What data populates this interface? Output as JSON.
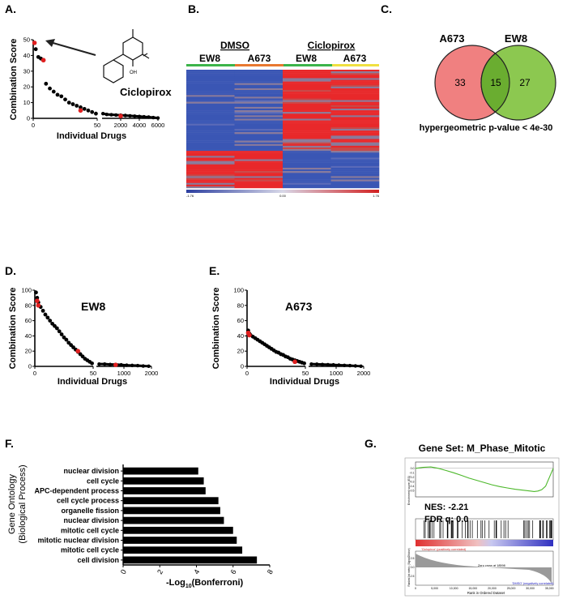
{
  "panels": {
    "A": {
      "label": "A.",
      "ylabel": "Combination Score",
      "xlabel": "Individual Drugs",
      "drug_name": "Ciclopirox",
      "yticks": [
        "50",
        "40",
        "30",
        "20",
        "10",
        "0"
      ],
      "xticks": [
        "0",
        "50",
        "2000",
        "4000",
        "6000"
      ],
      "chem_label": "OH"
    },
    "B": {
      "label": "B.",
      "group1": "DMSO",
      "group2": "Ciclopirox",
      "cols": [
        "EW8",
        "A673",
        "EW8",
        "A673"
      ],
      "scale_left": "-1.76",
      "scale_mid": "0.00",
      "scale_right": "1.76"
    },
    "C": {
      "label": "C.",
      "set1": "A673",
      "set2": "EW8",
      "only1": "33",
      "both": "15",
      "only2": "27",
      "caption": "hypergeometric p-value < 4e-30"
    },
    "D": {
      "label": "D.",
      "title": "EW8",
      "ylabel": "Combination Score",
      "xlabel": "Individual Drugs",
      "yticks": [
        "100",
        "80",
        "60",
        "40",
        "20",
        "0"
      ],
      "xticks": [
        "0",
        "50",
        "1000",
        "2000"
      ]
    },
    "E": {
      "label": "E.",
      "title": "A673",
      "ylabel": "Combination Score",
      "xlabel": "Individual Drugs",
      "yticks": [
        "100",
        "80",
        "60",
        "40",
        "20",
        "0"
      ],
      "xticks": [
        "0",
        "50",
        "1000",
        "2000"
      ]
    },
    "F": {
      "label": "F.",
      "ylabel_line1": "Gene  Ontology",
      "ylabel_line2": "(Biological Process)",
      "xlabel_pre": "-Log",
      "xlabel_sub": "10",
      "xlabel_post": "(Bonferroni)"
    },
    "G": {
      "label": "G.",
      "title": "Gene Set: M_Phase_Mitotic",
      "nes": "NES: -2.21",
      "fdr": "FDR q: 0.0",
      "y_label_top": "Enrichment score (ES)",
      "y_label_bottom": "Ranked list metric (Signal2Noise)",
      "pos_label": "'Ciclopirox' (positively correlated)",
      "neg_label": "'DMSO' (negatively correlated)",
      "zero_cross": "Zero cross at 18598",
      "xlabel": "Rank in Ordered Dataset",
      "es_ticks": [
        "0.0",
        "-0.1",
        "-0.2",
        "-0.3",
        "-0.4",
        "-0.5"
      ],
      "metric_ticks": [
        "2.5",
        "0.0",
        "-2.5"
      ],
      "rank_ticks": [
        "0",
        "5,000",
        "10,000",
        "15,000",
        "20,000",
        "25,000",
        "30,000",
        "35,000"
      ]
    }
  },
  "colors": {
    "venn_left": "#f08080",
    "venn_right": "#8cc850",
    "venn_overlap": "#6aad30",
    "heat_red": "#e8282a",
    "heat_blue": "#3a56b4",
    "highlight": "#e02020",
    "gsea_line": "#4cb82a",
    "bar": "#000000"
  },
  "chart_data": [
    {
      "id": "F",
      "type": "bar",
      "orientation": "horizontal",
      "categories": [
        "nuclear division",
        "cell cycle",
        "APC-dependent process",
        "cell cycle process",
        "organelle fission",
        "nuclear division",
        "mitotic cell cycle",
        "mitotic nuclear division",
        "mitotic cell cycle",
        "cell division"
      ],
      "values": [
        4.1,
        4.4,
        4.5,
        5.2,
        5.3,
        5.5,
        6.0,
        6.2,
        6.5,
        7.3
      ],
      "xlim": [
        0,
        8
      ],
      "xticks": [
        0,
        2,
        4,
        6,
        8
      ],
      "xlabel": "-Log10(Bonferroni)",
      "ylabel": "Gene Ontology (Biological Process)"
    },
    {
      "id": "A",
      "type": "scatter",
      "title": "",
      "xlabel": "Individual Drugs",
      "ylabel": "Combination Score",
      "ylim": [
        0,
        50
      ],
      "left_segment": {
        "xlim": [
          0,
          50
        ],
        "x": [
          1,
          2,
          4,
          6,
          8,
          10,
          13,
          16,
          19,
          22,
          25,
          28,
          31,
          34,
          37,
          40,
          43,
          46,
          49
        ],
        "y": [
          48,
          44,
          39,
          38,
          37,
          22,
          19,
          17,
          15,
          14,
          12,
          10,
          9,
          8,
          7,
          6,
          5,
          4,
          3
        ]
      },
      "right_segment": {
        "xlim": [
          0,
          6000
        ],
        "x": [
          100,
          500,
          1000,
          1500,
          2000,
          2500,
          3000,
          3500,
          4000,
          4500,
          5000,
          5500,
          6000
        ],
        "y": [
          3,
          2.5,
          2.3,
          2.1,
          2,
          1.8,
          1.6,
          1.4,
          1.2,
          1,
          0.8,
          0.5,
          0.2
        ]
      },
      "highlight_points": [
        {
          "x": 1,
          "y": 48
        },
        {
          "x": 8,
          "y": 37
        },
        {
          "x": 37,
          "y": 5
        },
        {
          "x": 2000,
          "y": 1.5
        }
      ]
    },
    {
      "id": "D",
      "type": "scatter",
      "xlabel": "Individual Drugs",
      "ylabel": "Combination Score",
      "ylim": [
        0,
        100
      ],
      "left_segment": {
        "xlim": [
          0,
          50
        ],
        "x": [
          1,
          2,
          3,
          5,
          7,
          9,
          11,
          13,
          15,
          17,
          19,
          21,
          23,
          25,
          27,
          29,
          31,
          33,
          35,
          37,
          39,
          41,
          43,
          45,
          47,
          49
        ],
        "y": [
          97,
          90,
          84,
          78,
          73,
          68,
          64,
          60,
          56,
          53,
          50,
          46,
          42,
          38,
          35,
          31,
          28,
          25,
          22,
          19,
          16,
          13,
          10,
          8,
          6,
          4
        ]
      },
      "right_segment": {
        "xlim": [
          0,
          2000
        ],
        "x": [
          100,
          300,
          500,
          700,
          900,
          1100,
          1300,
          1500,
          1700,
          1900
        ],
        "y": [
          3,
          3,
          2.5,
          2.5,
          2,
          1.5,
          1.2,
          1,
          0.5,
          0.2
        ]
      },
      "highlight_points": [
        {
          "x": 2,
          "y": 86
        },
        {
          "x": 3,
          "y": 80
        },
        {
          "x": 37,
          "y": 20
        },
        {
          "x": 700,
          "y": 2
        }
      ]
    },
    {
      "id": "E",
      "type": "scatter",
      "xlabel": "Individual Drugs",
      "ylabel": "Combination Score",
      "ylim": [
        0,
        100
      ],
      "left_segment": {
        "xlim": [
          0,
          50
        ],
        "x": [
          1,
          2,
          3,
          5,
          7,
          9,
          11,
          13,
          15,
          17,
          19,
          21,
          23,
          25,
          27,
          29,
          31,
          33,
          35,
          37,
          39,
          41,
          43,
          45,
          47,
          49
        ],
        "y": [
          47,
          43,
          41,
          39,
          37,
          35,
          33,
          31,
          29,
          27,
          25,
          23,
          21,
          19,
          18,
          16,
          15,
          13,
          12,
          10,
          9,
          8,
          7,
          6,
          5,
          4
        ]
      },
      "right_segment": {
        "xlim": [
          0,
          2000
        ],
        "x": [
          100,
          300,
          500,
          700,
          900,
          1100,
          1300,
          1500,
          1700,
          1900
        ],
        "y": [
          3,
          2.8,
          2.5,
          2.2,
          2,
          1.6,
          1.3,
          1,
          0.6,
          0.2
        ]
      },
      "highlight_points": [
        {
          "x": 1,
          "y": 44
        },
        {
          "x": 2,
          "y": 41
        },
        {
          "x": 41,
          "y": 6
        }
      ]
    },
    {
      "id": "G",
      "type": "line",
      "xlabel": "Rank in Ordered Dataset",
      "ylabel": "Enrichment score (ES)",
      "xlim": [
        0,
        36000
      ],
      "ylim": [
        -0.55,
        0.05
      ],
      "x": [
        0,
        2000,
        4000,
        6000,
        8000,
        10000,
        12000,
        14000,
        16000,
        18000,
        20000,
        22000,
        24000,
        26000,
        28000,
        30000,
        31000,
        32000,
        33000,
        34000,
        35000,
        36000
      ],
      "y": [
        0.0,
        0.02,
        0.03,
        0.0,
        -0.05,
        -0.1,
        -0.16,
        -0.22,
        -0.27,
        -0.32,
        -0.37,
        -0.41,
        -0.44,
        -0.47,
        -0.49,
        -0.51,
        -0.52,
        -0.51,
        -0.48,
        -0.4,
        -0.2,
        0.0
      ]
    }
  ]
}
